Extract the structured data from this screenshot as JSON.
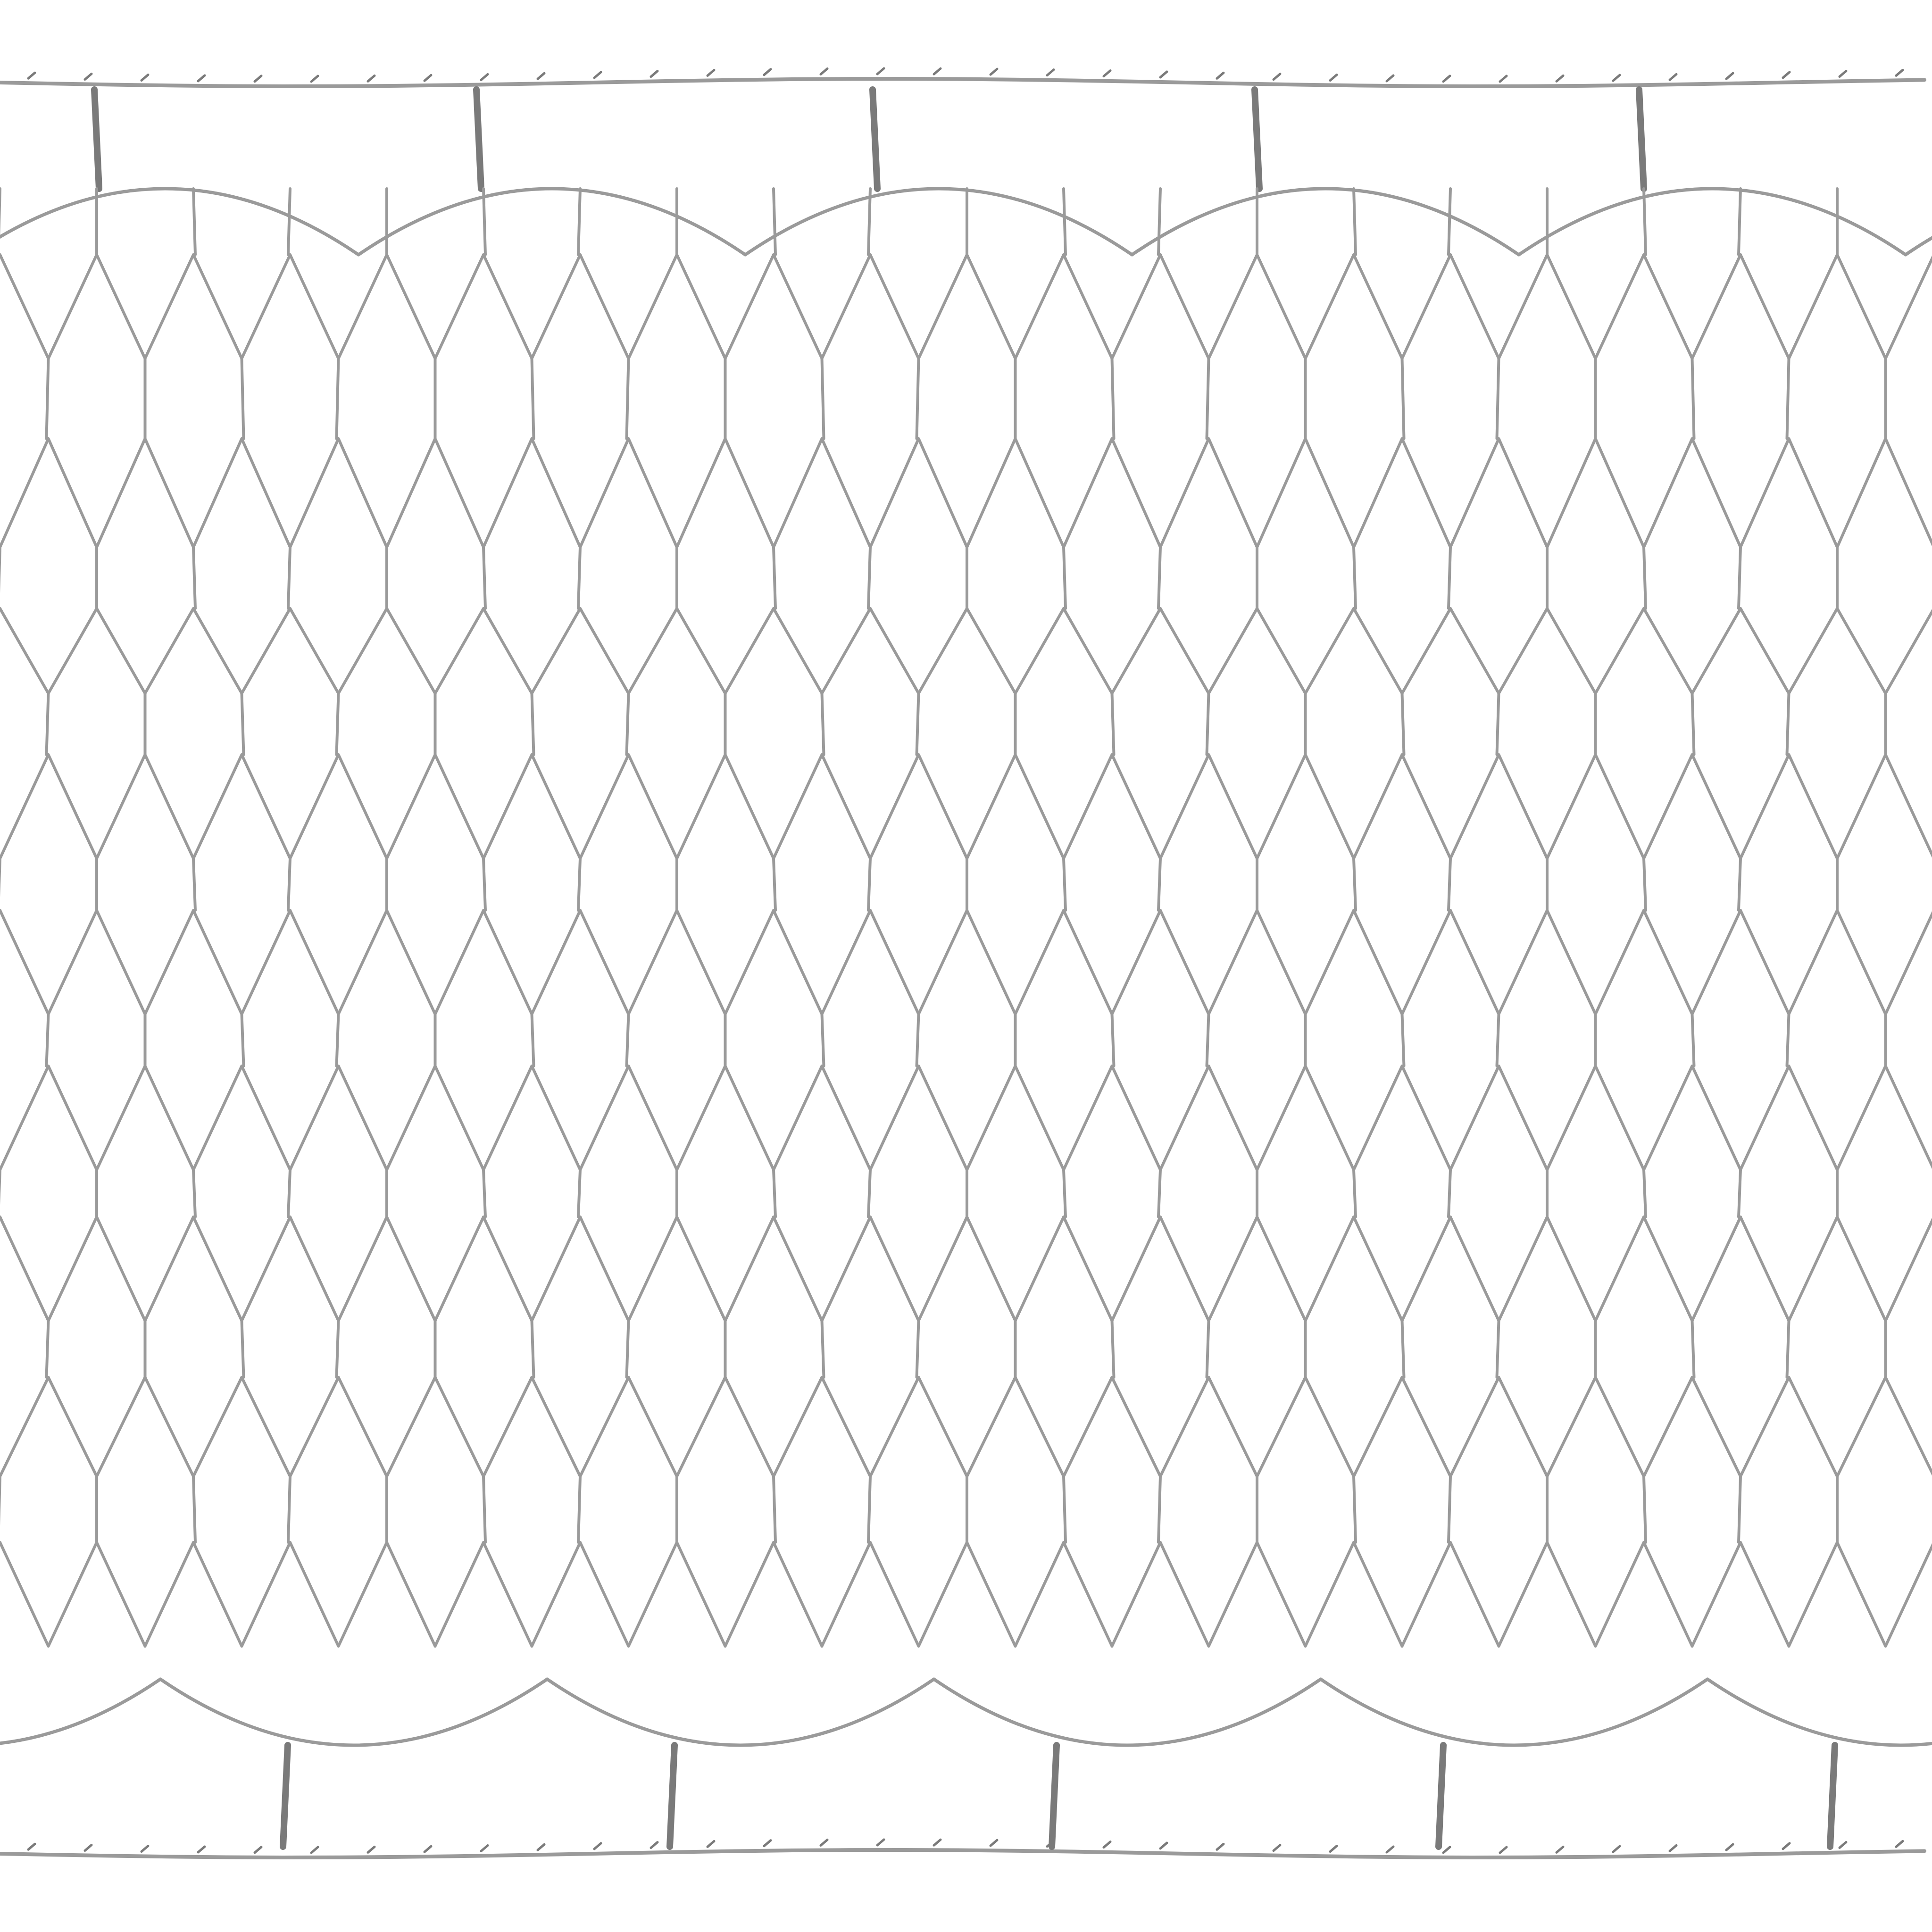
{
  "image": {
    "subject": "wire-mesh-net",
    "background_color": "#ffffff",
    "wire_color": "#9a9a9a",
    "wire_dark_color": "#7a7a7a",
    "pattern": "hexagonal-chicken-wire",
    "rope_edges": [
      "top",
      "bottom"
    ],
    "columns": 20,
    "mesh_rows": 14
  }
}
